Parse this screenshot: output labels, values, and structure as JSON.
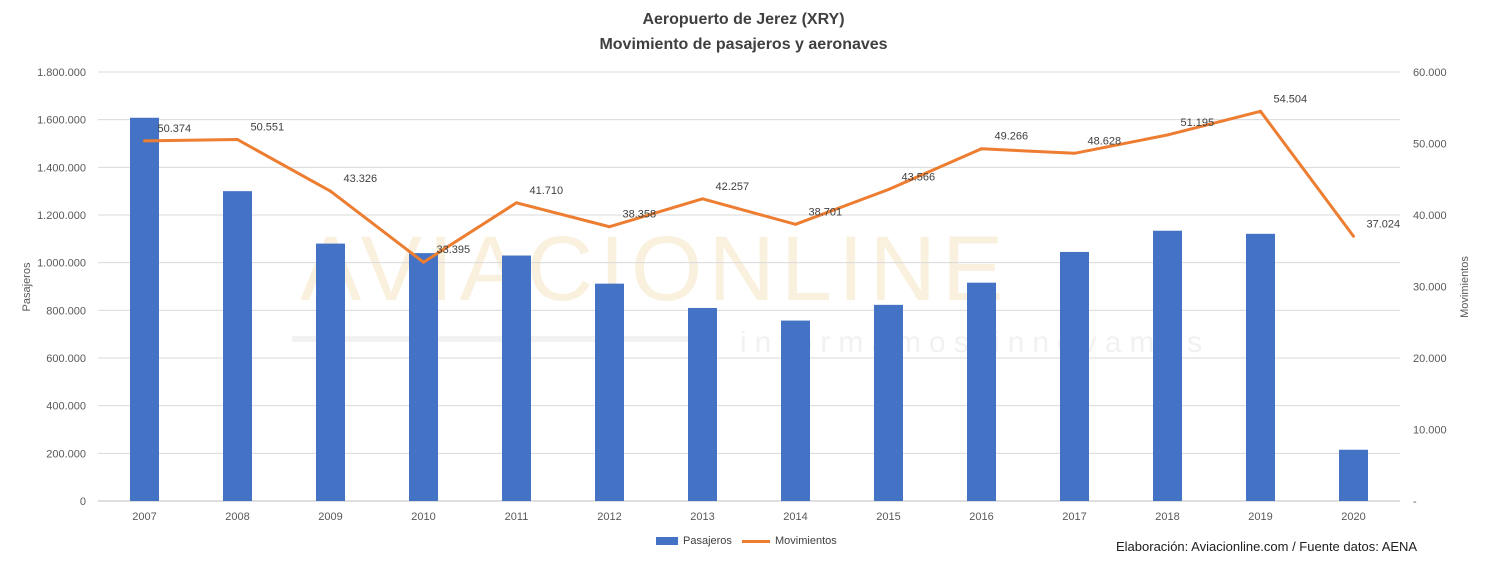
{
  "chart_data": {
    "type": "bar+line",
    "title": "Aeropuerto de Jerez (XRY)",
    "subtitle": "Movimiento de pasajeros y aeronaves",
    "categories": [
      "2007",
      "2008",
      "2009",
      "2010",
      "2011",
      "2012",
      "2013",
      "2014",
      "2015",
      "2016",
      "2017",
      "2018",
      "2019",
      "2020"
    ],
    "series": [
      {
        "name": "Pasajeros",
        "type": "bar",
        "axis": "left",
        "color": "#4472C4",
        "values": [
          1608000,
          1300000,
          1080000,
          1040000,
          1030000,
          912000,
          810000,
          757000,
          823000,
          916000,
          1045000,
          1134000,
          1121000,
          215000
        ]
      },
      {
        "name": "Movimientos",
        "type": "line",
        "axis": "right",
        "color": "#ED7D31",
        "values": [
          50374,
          50551,
          43326,
          33395,
          41710,
          38358,
          42257,
          38701,
          43566,
          49266,
          48628,
          51195,
          54504,
          37024
        ],
        "data_labels": [
          "50.374",
          "50.551",
          "43.326",
          "33.395",
          "41.710",
          "38.358",
          "42.257",
          "38.701",
          "43.566",
          "49.266",
          "48.628",
          "51.195",
          "54.504",
          "37.024"
        ]
      }
    ],
    "ylabel": "Pasajeros",
    "y2label": "Movimientos",
    "ylim": [
      0,
      1800000
    ],
    "y2lim": [
      0,
      60000
    ],
    "yticks": [
      "0",
      "200.000",
      "400.000",
      "600.000",
      "800.000",
      "1.000.000",
      "1.200.000",
      "1.400.000",
      "1.600.000",
      "1.800.000"
    ],
    "y2ticks": [
      "-",
      "10.000",
      "20.000",
      "30.000",
      "40.000",
      "50.000",
      "60.000"
    ],
    "grid": true,
    "legend_position": "bottom"
  },
  "watermark": {
    "main": "AVIACIONLINE",
    "tagline": "informamos innovamos"
  },
  "credit": "Elaboración: Aviacionline.com / Fuente datos: AENA"
}
